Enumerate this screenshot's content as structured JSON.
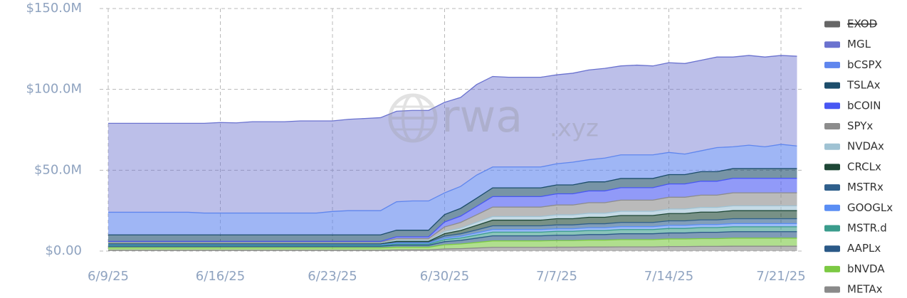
{
  "chart_data": {
    "type": "stacked_area",
    "watermark": {
      "name": "rwa",
      "suffix": ".xyz"
    },
    "categories": [
      "6/9/25",
      null,
      null,
      null,
      null,
      null,
      null,
      "6/16/25",
      null,
      null,
      null,
      null,
      null,
      null,
      "6/23/25",
      null,
      null,
      null,
      null,
      null,
      null,
      "6/30/25",
      null,
      null,
      null,
      null,
      null,
      null,
      "7/7/25",
      null,
      null,
      null,
      null,
      null,
      null,
      "7/14/25",
      null,
      null,
      null,
      null,
      null,
      null,
      "7/21/25",
      null
    ],
    "ylim": [
      0,
      150
    ],
    "yticks": [
      {
        "value": 0,
        "label": "$0.00"
      },
      {
        "value": 50,
        "label": "$50.0M"
      },
      {
        "value": 100,
        "label": "$100.0M"
      },
      {
        "value": 150,
        "label": "$150.0M"
      }
    ],
    "grid": true,
    "stacked": true,
    "legend": "right",
    "series": [
      {
        "name": "EXOD",
        "color": "#666666",
        "hidden": true
      },
      {
        "name": "MGL",
        "color": "#6a72cf",
        "values": [
          55,
          55,
          55,
          55,
          55,
          55,
          55.5,
          56,
          55.8,
          56.5,
          56.5,
          56.5,
          57,
          57,
          56,
          56.5,
          57,
          57.5,
          56,
          56,
          56,
          56,
          55,
          56,
          56,
          55.5,
          55.5,
          55.5,
          55,
          55,
          55.5,
          55.5,
          55,
          55.5,
          55,
          55.5,
          56,
          56,
          56,
          55.5,
          55.5,
          55.5,
          55,
          55.5
        ]
      },
      {
        "name": "bCSPX",
        "color": "#5f86ee",
        "values": [
          14,
          14,
          14,
          14,
          14,
          14,
          13.5,
          13.5,
          13.5,
          13.5,
          13.5,
          13.5,
          13.5,
          13.5,
          14.5,
          15,
          15,
          15,
          17.6,
          18.1,
          18.1,
          13.4,
          13.6,
          14.3,
          12.9,
          12.9,
          12.9,
          12.9,
          13.1,
          14.1,
          13.7,
          14.7,
          14.6,
          14.6,
          14.6,
          13.7,
          12.7,
          12.9,
          14.9,
          13.5,
          14.5,
          13.5,
          15,
          14
        ]
      },
      {
        "name": "TSLAx",
        "color": "#1c4d6b",
        "values": [
          4,
          4,
          4,
          4,
          4,
          4,
          4,
          4,
          4,
          4,
          4,
          4,
          4,
          4,
          4,
          4,
          4,
          4,
          4.1,
          4.1,
          4.1,
          4.6,
          4.8,
          5.1,
          5.4,
          5.4,
          5.4,
          5.4,
          5.5,
          5.5,
          5.6,
          5.6,
          5.7,
          5.7,
          5.7,
          5.8,
          5.8,
          5.9,
          5.9,
          6,
          6,
          6,
          6,
          6
        ]
      },
      {
        "name": "bCOIN",
        "color": "#4857f3",
        "values": [
          0.5,
          0.5,
          0.5,
          0.5,
          0.5,
          0.5,
          0.5,
          0.5,
          0.5,
          0.5,
          0.5,
          0.5,
          0.5,
          0.5,
          0.5,
          0.5,
          0.5,
          0.5,
          1.1,
          1.1,
          1.1,
          3.1,
          3.9,
          5.2,
          6.5,
          6.5,
          6.5,
          6.5,
          6.9,
          6.9,
          7.3,
          7.3,
          7.7,
          7.7,
          7.7,
          8.2,
          8.2,
          8.6,
          8.6,
          9,
          9,
          9,
          9,
          9
        ]
      },
      {
        "name": "SPYx",
        "color": "#8c8c8c",
        "values": [
          0.5,
          0.5,
          0.5,
          0.5,
          0.5,
          0.5,
          0.5,
          0.5,
          0.5,
          0.5,
          0.5,
          0.5,
          0.5,
          0.5,
          0.5,
          0.5,
          0.5,
          0.5,
          1,
          1,
          1,
          2.8,
          3.5,
          4.6,
          5.8,
          5.8,
          5.8,
          5.8,
          6.1,
          6.1,
          6.5,
          6.5,
          6.9,
          6.9,
          6.9,
          7.3,
          7.3,
          7.6,
          7.6,
          8,
          8,
          8,
          8,
          8
        ]
      },
      {
        "name": "NVDAx",
        "color": "#9fc2d3",
        "values": [
          0.5,
          0.5,
          0.5,
          0.5,
          0.5,
          0.5,
          0.5,
          0.5,
          0.5,
          0.5,
          0.5,
          0.5,
          0.5,
          0.5,
          0.5,
          0.5,
          0.5,
          0.5,
          0.7,
          0.7,
          0.7,
          1.3,
          1.5,
          1.9,
          2.3,
          2.3,
          2.3,
          2.3,
          2.4,
          2.4,
          2.5,
          2.5,
          2.6,
          2.6,
          2.6,
          2.8,
          2.8,
          2.9,
          2.9,
          3,
          3,
          3,
          3,
          3
        ]
      },
      {
        "name": "CRCLx",
        "color": "#1e4736",
        "values": [
          0,
          0,
          0,
          0,
          0,
          0,
          0,
          0,
          0,
          0,
          0,
          0,
          0,
          0,
          0,
          0,
          0,
          0,
          0.4,
          0.4,
          0.4,
          1.5,
          2,
          2.8,
          3.5,
          3.5,
          3.5,
          3.5,
          3.8,
          3.8,
          4,
          4,
          4.3,
          4.3,
          4.3,
          4.5,
          4.5,
          4.8,
          4.8,
          5,
          5,
          5,
          5,
          5
        ]
      },
      {
        "name": "MSTRx",
        "color": "#2f5f8c",
        "values": [
          0.5,
          0.5,
          0.5,
          0.5,
          0.5,
          0.5,
          0.5,
          0.5,
          0.5,
          0.5,
          0.5,
          0.5,
          0.5,
          0.5,
          0.5,
          0.5,
          0.5,
          0.5,
          0.7,
          0.7,
          0.7,
          1.3,
          1.5,
          1.9,
          2.3,
          2.3,
          2.3,
          2.3,
          2.4,
          2.4,
          2.5,
          2.5,
          2.6,
          2.6,
          2.6,
          2.8,
          2.8,
          2.9,
          2.9,
          3,
          3,
          3,
          3,
          3
        ]
      },
      {
        "name": "GOOGLx",
        "color": "#5a8ef4",
        "values": [
          0.5,
          0.5,
          0.5,
          0.5,
          0.5,
          0.5,
          0.5,
          0.5,
          0.5,
          0.5,
          0.5,
          0.5,
          0.5,
          0.5,
          0.5,
          0.5,
          0.5,
          0.5,
          0.6,
          0.6,
          0.6,
          0.9,
          1.1,
          1.3,
          1.6,
          1.6,
          1.6,
          1.6,
          1.6,
          1.6,
          1.7,
          1.7,
          1.8,
          1.8,
          1.8,
          1.9,
          1.9,
          1.9,
          1.9,
          2,
          2,
          2,
          2,
          2
        ]
      },
      {
        "name": "MSTR.d",
        "color": "#3a9c8c",
        "values": [
          0.5,
          0.5,
          0.5,
          0.5,
          0.5,
          0.5,
          0.5,
          0.5,
          0.5,
          0.5,
          0.5,
          0.5,
          0.5,
          0.5,
          0.5,
          0.5,
          0.5,
          0.5,
          0.7,
          0.7,
          0.7,
          1.3,
          1.5,
          1.9,
          2.3,
          2.3,
          2.3,
          2.3,
          2.4,
          2.4,
          2.5,
          2.5,
          2.6,
          2.6,
          2.6,
          2.8,
          2.8,
          2.9,
          2.9,
          3,
          3,
          3,
          3,
          3
        ]
      },
      {
        "name": "AAPLx",
        "color": "#2a5987",
        "values": [
          1,
          1,
          1,
          1,
          1,
          1,
          1,
          1,
          1,
          1,
          1,
          1,
          1,
          1,
          1,
          1,
          1,
          1,
          1.2,
          1.2,
          1.2,
          1.9,
          2.2,
          2.7,
          3.1,
          3.1,
          3.1,
          3.1,
          3.3,
          3.3,
          3.4,
          3.4,
          3.6,
          3.6,
          3.6,
          3.7,
          3.7,
          3.9,
          3.9,
          4,
          4,
          4,
          4,
          4
        ]
      },
      {
        "name": "bNVDA",
        "color": "#7cc943",
        "values": [
          1.5,
          1.5,
          1.5,
          1.5,
          1.5,
          1.5,
          1.5,
          1.5,
          1.5,
          1.5,
          1.5,
          1.5,
          1.5,
          1.5,
          1.5,
          1.5,
          1.5,
          1.5,
          1.7,
          1.7,
          1.7,
          2.6,
          2.9,
          3.4,
          4,
          4,
          4,
          4,
          4.1,
          4.1,
          4.3,
          4.3,
          4.5,
          4.5,
          4.5,
          4.7,
          4.7,
          4.8,
          4.8,
          5,
          5,
          5,
          5,
          5
        ]
      },
      {
        "name": "METAx",
        "color": "#8a8a8a",
        "values": [
          0.5,
          0.5,
          0.5,
          0.5,
          0.5,
          0.5,
          0.5,
          0.5,
          0.5,
          0.5,
          0.5,
          0.5,
          0.5,
          0.5,
          0.5,
          0.5,
          0.5,
          0.5,
          0.7,
          0.7,
          0.7,
          1.3,
          1.5,
          1.9,
          2.3,
          2.3,
          2.3,
          2.3,
          2.4,
          2.4,
          2.5,
          2.5,
          2.6,
          2.6,
          2.6,
          2.8,
          2.8,
          2.9,
          2.9,
          3,
          3,
          3,
          3,
          3
        ]
      }
    ]
  }
}
